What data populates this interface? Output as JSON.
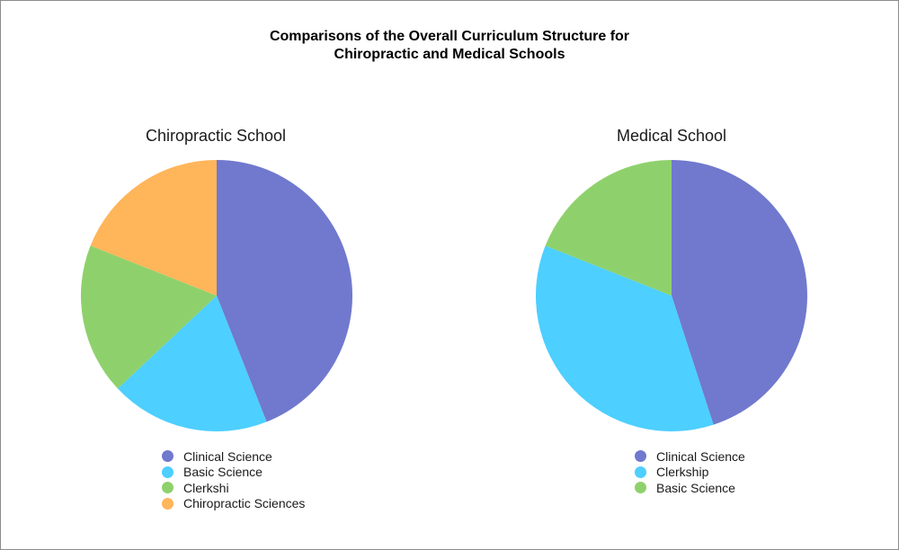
{
  "title_line1": "Comparisons of the Overall Curriculum Structure for",
  "title_line2": "Chiropractic and Medical Schools",
  "chart_data": [
    {
      "type": "pie",
      "title": "Chiropractic School",
      "start_angle": "12 o'clock, clockwise",
      "legend_position": "bottom",
      "slices": [
        {
          "label": "Clinical Science",
          "value": 44,
          "color": "#7079CD"
        },
        {
          "label": "Basic Science",
          "value": 19,
          "color": "#4DCFFF"
        },
        {
          "label": "Clerkshi",
          "value": 18,
          "color": "#8ED16C"
        },
        {
          "label": "Chiropractic Sciences",
          "value": 19,
          "color": "#FFB55A"
        }
      ]
    },
    {
      "type": "pie",
      "title": "Medical School",
      "start_angle": "12 o'clock, clockwise",
      "legend_position": "bottom",
      "slices": [
        {
          "label": "Clinical Science",
          "value": 45,
          "color": "#7079CD"
        },
        {
          "label": "Clerkship",
          "value": 36,
          "color": "#4DCFFF"
        },
        {
          "label": "Basic Science",
          "value": 19,
          "color": "#8ED16C"
        }
      ]
    }
  ]
}
